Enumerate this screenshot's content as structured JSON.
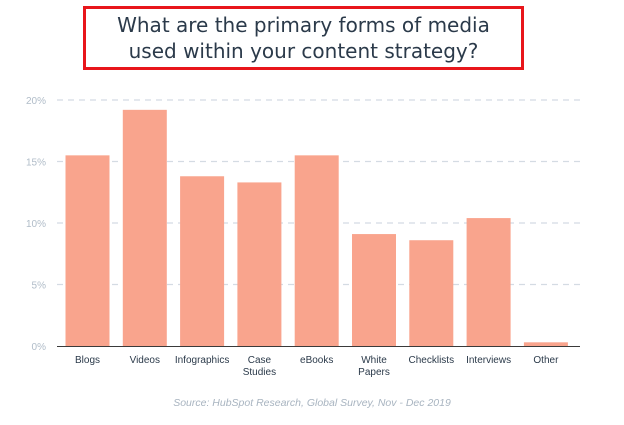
{
  "title": "What are the primary forms of media used within your content strategy?",
  "source": "Source: HubSpot Research, Global Survey, Nov - Dec 2019",
  "colors": {
    "bar": "#f9a48d",
    "grid": "#d4dbe3",
    "axis_text": "#b0bcc8",
    "category_text": "#2b3a4a",
    "title_border": "#e8161b"
  },
  "chart_data": {
    "type": "bar",
    "categories": [
      [
        "Blogs"
      ],
      [
        "Videos"
      ],
      [
        "Infographics"
      ],
      [
        "Case",
        "Studies"
      ],
      [
        "eBooks"
      ],
      [
        "White",
        "Papers"
      ],
      [
        "Checklists"
      ],
      [
        "Interviews"
      ],
      [
        "Other"
      ]
    ],
    "values": [
      15.5,
      19.2,
      13.8,
      13.3,
      15.5,
      9.1,
      8.6,
      10.4,
      0.3
    ],
    "ylim": [
      0,
      20
    ],
    "yticks": [
      "0%",
      "5%",
      "10%",
      "15%",
      "20%"
    ],
    "ytick_values": [
      0,
      5,
      10,
      15,
      20
    ],
    "grid": true,
    "xlabel": "",
    "ylabel": ""
  }
}
